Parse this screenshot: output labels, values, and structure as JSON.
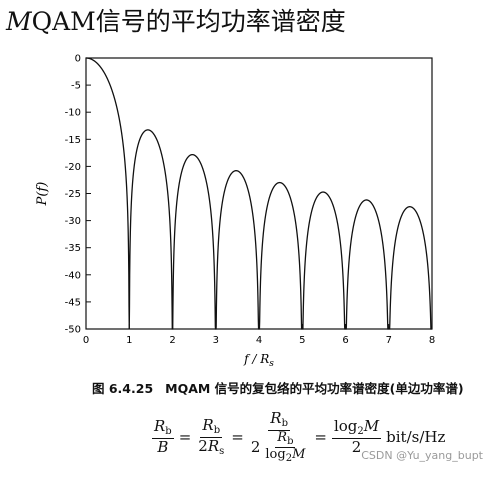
{
  "heading": {
    "italic": "M",
    "text": "QAM信号的平均功率谱密度"
  },
  "chart_data": {
    "type": "line",
    "xlabel": "f / R_s",
    "ylabel": "P(f)",
    "xlim": [
      0,
      8
    ],
    "ylim": [
      -50,
      0
    ],
    "xticks": [
      0,
      1,
      2,
      3,
      4,
      5,
      6,
      7,
      8
    ],
    "yticks": [
      0,
      -5,
      -10,
      -15,
      -20,
      -25,
      -30,
      -35,
      -40,
      -45,
      -50
    ],
    "grid": false,
    "legend": "none",
    "series": [
      {
        "function": "10*log10(sinc^2(f/R_s))",
        "x": [
          0,
          0.1,
          0.2,
          0.3,
          0.4,
          0.5,
          0.6,
          0.7,
          0.8,
          0.9,
          1,
          1.5,
          2,
          2.5,
          3,
          3.5,
          4,
          4.5,
          5,
          5.5,
          6,
          6.5,
          7,
          7.5,
          8
        ],
        "values": [
          0,
          -0.14,
          -0.57,
          -1.32,
          -2.42,
          -3.92,
          -5.94,
          -8.75,
          -12.9,
          -20.1,
          -50,
          -13.5,
          -50,
          -17.9,
          -50,
          -20.8,
          -50,
          -23.0,
          -50,
          -24.7,
          -50,
          -26.2,
          -50,
          -27.4,
          -50
        ],
        "lobe_peaks": {
          "x": [
            1.5,
            2.5,
            3.5,
            4.5,
            5.5,
            6.5,
            7.5
          ],
          "values": [
            -13.5,
            -17.9,
            -20.8,
            -23.0,
            -24.7,
            -26.2,
            -27.4
          ]
        }
      }
    ]
  },
  "caption": {
    "number": "图 6.4.25",
    "text": "MQAM 信号的复包络的平均功率谱密度(单边功率谱)"
  },
  "formula": {
    "rb": "R",
    "rb_sub": "b",
    "b": "B",
    "two": "2",
    "rs": "R",
    "rs_sub": "s",
    "log": "log",
    "log_sub": "2",
    "m": "M",
    "unit": "bit/s/Hz",
    "eq": "="
  },
  "watermark": "CSDN @Yu_yang_bupt"
}
